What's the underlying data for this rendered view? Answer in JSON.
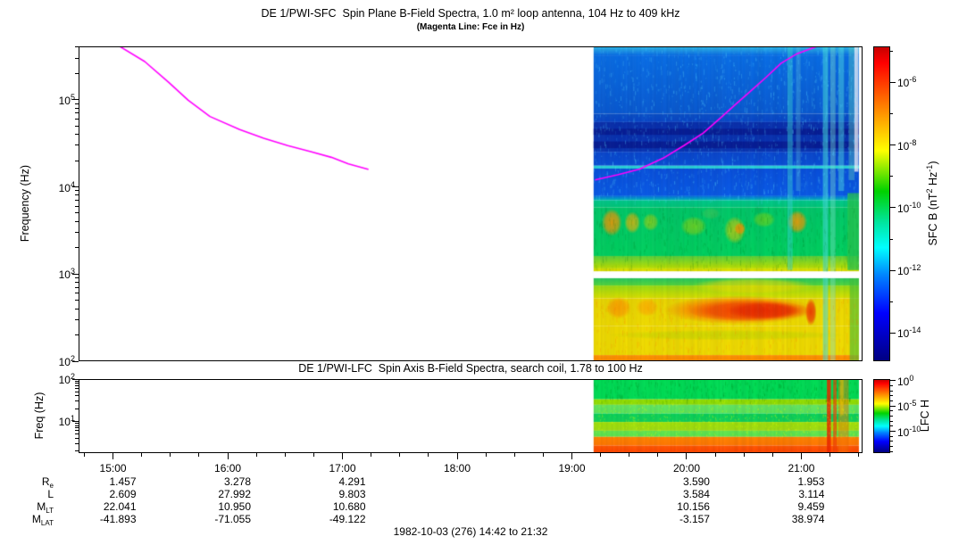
{
  "figure": {
    "caption": "1982-10-03 (276) 14:42 to 21:32",
    "magenta_color": "#FF00FF",
    "colormap_stops": [
      [
        0,
        "#C80000"
      ],
      [
        0.05,
        "#FF0000"
      ],
      [
        0.18,
        "#FF7800"
      ],
      [
        0.33,
        "#FFFF00"
      ],
      [
        0.46,
        "#00D200"
      ],
      [
        0.56,
        "#00E6A0"
      ],
      [
        0.64,
        "#00FFFF"
      ],
      [
        0.73,
        "#0082FF"
      ],
      [
        0.85,
        "#0000FF"
      ],
      [
        1,
        "#000082"
      ]
    ]
  },
  "chart_data": [
    {
      "type": "heatmap",
      "title": "DE 1/PWI-SFC  Spin Plane B-Field Spectra, 1.0 m² loop antenna, 104 Hz to 409 kHz",
      "subtitle": "(Magenta Line: Fce in Hz)",
      "ylabel": "Frequency (Hz)",
      "y_scale": "log",
      "ylim_hz": [
        100,
        409000
      ],
      "y_tick_exponents": [
        5,
        4,
        3,
        2
      ],
      "x_range_hours": [
        14.7,
        21.5333
      ],
      "x_tick_hours": [
        15,
        16,
        17,
        18,
        19,
        20,
        21
      ],
      "x_tick_labels": [
        "15:00",
        "16:00",
        "17:00",
        "18:00",
        "19:00",
        "20:00",
        "21:00"
      ],
      "x_minor_step_hours": 0.25,
      "data_hours": [
        19.19,
        21.51
      ],
      "colorbar": {
        "label": "SFC B (nT² Hz⁻¹)",
        "label_parts": [
          "SFC B (nT",
          [
            "2"
          ],
          " Hz",
          [
            "-1"
          ],
          ")"
        ],
        "tick_exponents": [
          -6,
          -8,
          -10,
          -12,
          -14
        ],
        "minor_exponent_step": 1,
        "range_exponents": [
          -4.85,
          -14.9
        ]
      },
      "fce_line_hz": {
        "color": "#FF00FF",
        "segments": [
          [
            [
              15.05,
              420000
            ],
            [
              15.27,
              280000
            ],
            [
              15.48,
              161000
            ],
            [
              15.65,
              100000
            ],
            [
              15.84,
              65000
            ],
            [
              16.1,
              46000
            ],
            [
              16.31,
              36400
            ],
            [
              16.52,
              30000
            ],
            [
              16.72,
              25600
            ],
            [
              16.9,
              22000
            ],
            [
              17.05,
              18500
            ],
            [
              17.22,
              16000
            ]
          ],
          [
            [
              19.21,
              12100
            ],
            [
              19.4,
              13800
            ],
            [
              19.59,
              16000
            ],
            [
              19.8,
              21500
            ],
            [
              19.98,
              30000
            ],
            [
              20.15,
              42000
            ],
            [
              20.29,
              61000
            ],
            [
              20.42,
              87000
            ],
            [
              20.55,
              123000
            ],
            [
              20.7,
              185000
            ],
            [
              20.83,
              268000
            ],
            [
              20.97,
              345000
            ],
            [
              21.1,
              400000
            ],
            [
              21.18,
              435000
            ]
          ]
        ]
      },
      "bands": [
        [
          409000,
          330000,
          "#2DB4E8",
          "#0A6EE6"
        ],
        [
          330000,
          70000,
          "#0A6EE6",
          "#0A5AD2"
        ],
        [
          70000,
          56000,
          "#0A50C8",
          "#0A46C8"
        ],
        [
          56000,
          25500,
          "#0A2FAC",
          "#0A35B4"
        ],
        [
          25500,
          17600,
          "#0A46CD",
          "#0A50D7"
        ],
        [
          17600,
          16300,
          "#28D7DC",
          "#28CDD7"
        ],
        [
          16300,
          8000,
          "#0A50DC",
          "#0A5AE6"
        ],
        [
          8000,
          7000,
          "#0A64E6",
          "#00BEB4"
        ],
        [
          7000,
          5800,
          "#00C88C",
          "#00C877"
        ],
        [
          5800,
          1600,
          "#00C869",
          "#00D25F"
        ],
        [
          1600,
          1150,
          "#5AD23C",
          "#BEE100"
        ],
        [
          1150,
          1060,
          "#D7E100",
          "#E1E100"
        ],
        [
          890,
          730,
          "#28C85F",
          "#55D73C"
        ],
        [
          730,
          520,
          "#96DC14",
          "#DCE100"
        ],
        [
          520,
          250,
          "#EBD700",
          "#F0DC00"
        ],
        [
          250,
          115,
          "#F0DC00",
          "#F0DC00"
        ],
        [
          115,
          100,
          "#FF9600",
          "#FF8C00"
        ]
      ],
      "band_stripes": [
        [
          47000,
          40000,
          "#081E96"
        ],
        [
          33500,
          28000,
          "#081E96"
        ]
      ],
      "white_gap_hz": [
        1060,
        890
      ],
      "blobs": [
        [
          19.26,
          19.44,
          5600,
          2700,
          "#FF9600",
          0.85
        ],
        [
          19.46,
          19.6,
          5200,
          2900,
          "#FFB400",
          0.75
        ],
        [
          19.62,
          19.76,
          5000,
          3100,
          "#C8D200",
          0.6
        ],
        [
          19.95,
          20.18,
          4600,
          2700,
          "#AAD700",
          0.6
        ],
        [
          20.13,
          20.3,
          5800,
          4200,
          "#64C850",
          0.4
        ],
        [
          20.33,
          20.52,
          4600,
          2200,
          "#E1CD00",
          0.7
        ],
        [
          20.42,
          20.52,
          3900,
          2800,
          "#FF8C00",
          0.8
        ],
        [
          20.58,
          20.78,
          5200,
          3400,
          "#96D700",
          0.55
        ],
        [
          20.88,
          21.06,
          5400,
          2900,
          "#FF9600",
          0.85
        ],
        [
          19.3,
          19.52,
          540,
          300,
          "#FF8C00",
          0.7
        ],
        [
          19.56,
          19.76,
          520,
          320,
          "#FFA000",
          0.65
        ],
        [
          19.8,
          21.14,
          560,
          260,
          "#FF6E00",
          0.85
        ],
        [
          20.02,
          21.1,
          500,
          280,
          "#F03C00",
          0.9
        ],
        [
          20.35,
          21.0,
          470,
          300,
          "#E62800",
          0.85
        ],
        [
          21.04,
          21.14,
          520,
          250,
          "#F03200",
          0.9
        ],
        [
          20.05,
          21.12,
          900,
          580,
          "#F0DC00",
          0.7
        ],
        [
          19.3,
          21.4,
          225,
          170,
          "#8CD200",
          0.3
        ]
      ],
      "streaks": [
        [
          20.885,
          20.93,
          409000,
          1100,
          "#3CDCDC",
          0.45
        ],
        [
          20.96,
          21.0,
          409000,
          9000,
          "#64C8DC",
          0.3
        ],
        [
          21.195,
          21.24,
          409000,
          100,
          "#46DCDC",
          0.55
        ],
        [
          21.26,
          21.305,
          409000,
          100,
          "#78DCC8",
          0.4
        ],
        [
          21.33,
          21.38,
          409000,
          9000,
          "#50DCDC",
          0.45
        ],
        [
          21.42,
          21.47,
          409000,
          12000,
          "#64DCC8",
          0.4
        ],
        [
          21.41,
          21.51,
          8500,
          1100,
          "#28C850",
          0.75
        ],
        [
          21.43,
          21.51,
          880,
          100,
          "#46C83C",
          0.6
        ],
        [
          21.47,
          21.505,
          409000,
          15000,
          "#FFFFFF",
          0.75
        ]
      ]
    },
    {
      "type": "heatmap",
      "title": "DE 1/PWI-LFC  Spin Axis B-Field Spectra, search coil, 1.78 to 100 Hz",
      "ylabel": "Freq (Hz)",
      "y_scale": "log",
      "ylim_hz": [
        1.78,
        100
      ],
      "y_tick_exponents": [
        2,
        1
      ],
      "data_hours": [
        19.19,
        21.51
      ],
      "colorbar": {
        "label": "LFC H",
        "label_parts": [
          "LFC H"
        ],
        "tick_exponents": [
          0,
          -5,
          -10
        ],
        "minor_exponent_step": 1,
        "range_exponents": [
          0.3,
          -14.3
        ]
      },
      "bands": [
        [
          100,
          34,
          "#00DC55",
          "#00DC55"
        ],
        [
          34,
          25,
          "#96E100",
          "#8CDC0A"
        ],
        [
          25,
          15.5,
          "#64E664",
          "#5AE65A"
        ],
        [
          15.5,
          9.6,
          "#0AD25A",
          "#14D25A"
        ],
        [
          9.6,
          5.9,
          "#A0E10A",
          "#A0DC14"
        ],
        [
          5.9,
          4.2,
          "#64E650",
          "#5AE650"
        ],
        [
          4.2,
          2.6,
          "#FF8200",
          "#FF7800"
        ],
        [
          2.6,
          1.78,
          "#FF5A00",
          "#FF4600"
        ]
      ],
      "streaks": [
        [
          21.23,
          21.265,
          100,
          1.78,
          "#F02800",
          0.85
        ],
        [
          21.285,
          21.315,
          100,
          1.78,
          "#F03C00",
          0.7
        ],
        [
          21.33,
          21.42,
          100,
          1.78,
          "#FF7800",
          0.45
        ],
        [
          21.345,
          21.375,
          100,
          14,
          "#FFC800",
          0.5
        ]
      ]
    }
  ],
  "ephemeris": {
    "row_labels": [
      {
        "main": "R",
        "sub": "e"
      },
      {
        "main": "L",
        "sub": ""
      },
      {
        "main": "M",
        "sub": "LT"
      },
      {
        "main": "M",
        "sub": "LAT"
      }
    ],
    "columns": [
      {
        "hour": 15,
        "values": [
          "1.457",
          "2.609",
          "22.041",
          "-41.893"
        ]
      },
      {
        "hour": 16,
        "values": [
          "3.278",
          "27.992",
          "10.950",
          "-71.055"
        ]
      },
      {
        "hour": 17,
        "values": [
          "4.291",
          "9.803",
          "10.680",
          "-49.122"
        ]
      },
      {
        "hour": 20,
        "values": [
          "3.590",
          "3.584",
          "10.156",
          "-3.157"
        ]
      },
      {
        "hour": 21,
        "values": [
          "1.953",
          "3.114",
          "9.459",
          "38.974"
        ]
      }
    ]
  }
}
